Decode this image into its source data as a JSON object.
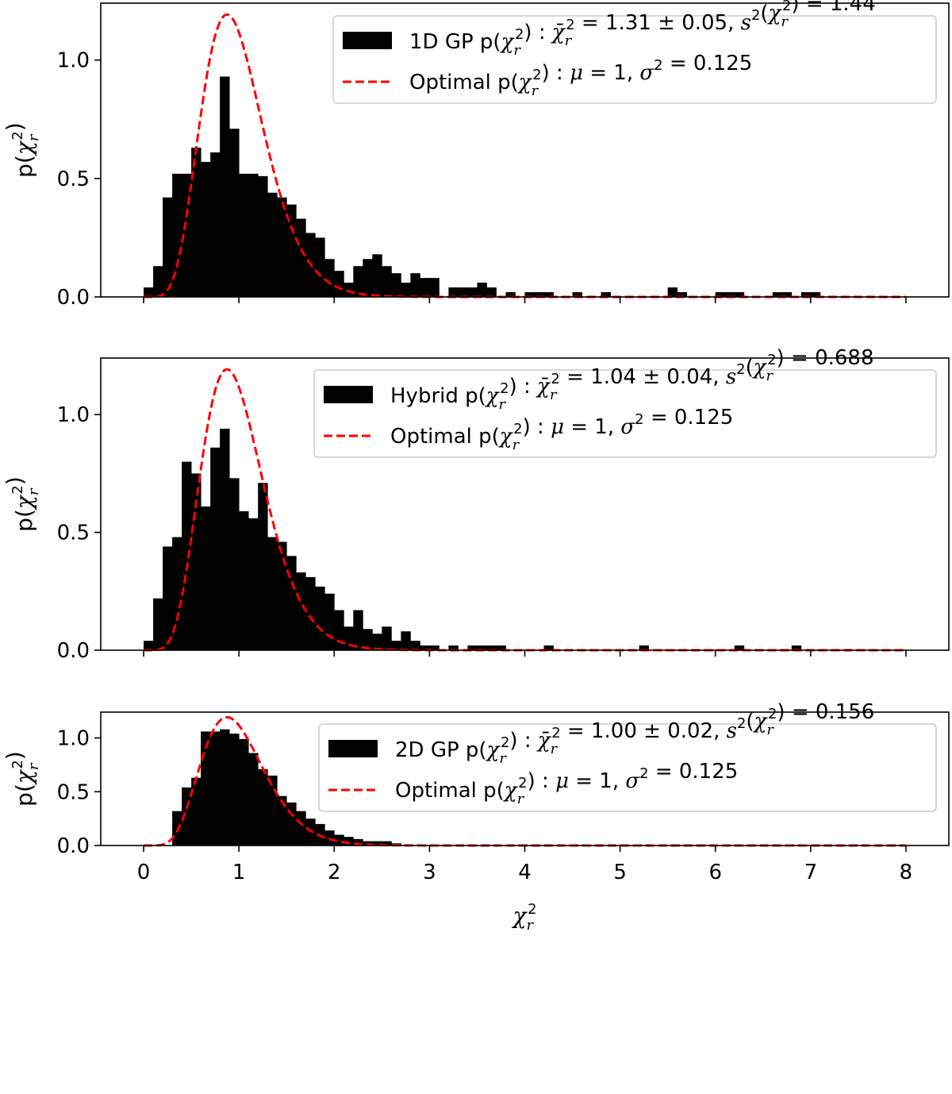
{
  "colors": {
    "bars": "#000000",
    "optimal_curve": "#ff0000",
    "axes": "#000000",
    "legend_border": "#cccccc"
  },
  "chart_data": [
    {
      "type": "bar",
      "ylabel": "p(χ_r^2)",
      "xlim": [
        -0.45,
        8.45
      ],
      "ylim": [
        0,
        1.24
      ],
      "yticks": [
        "0.0",
        "0.5",
        "1.0"
      ],
      "xticks": [
        "0",
        "1",
        "2",
        "3",
        "4",
        "5",
        "6",
        "7",
        "8"
      ],
      "show_xtick_labels": false,
      "bin_width": 0.1,
      "legend_position": "top-right",
      "legend": {
        "hist_label": "1D GP p(χ_r^2) : χ̄_r^2 = 1.31 ± 0.05, s^2(χ_r^2) = 1.44",
        "optimal_label": "Optimal p(χ_r^2) : μ = 1, σ^2 = 0.125"
      },
      "bins": [
        [
          0.0,
          0.04
        ],
        [
          0.1,
          0.13
        ],
        [
          0.2,
          0.42
        ],
        [
          0.3,
          0.52
        ],
        [
          0.4,
          0.52
        ],
        [
          0.5,
          0.63
        ],
        [
          0.6,
          0.57
        ],
        [
          0.7,
          0.61
        ],
        [
          0.8,
          0.93
        ],
        [
          0.9,
          0.71
        ],
        [
          1.0,
          0.52
        ],
        [
          1.1,
          0.52
        ],
        [
          1.2,
          0.51
        ],
        [
          1.3,
          0.44
        ],
        [
          1.4,
          0.42
        ],
        [
          1.5,
          0.39
        ],
        [
          1.6,
          0.33
        ],
        [
          1.7,
          0.27
        ],
        [
          1.8,
          0.25
        ],
        [
          1.9,
          0.16
        ],
        [
          2.0,
          0.11
        ],
        [
          2.1,
          0.06
        ],
        [
          2.2,
          0.13
        ],
        [
          2.3,
          0.16
        ],
        [
          2.4,
          0.18
        ],
        [
          2.5,
          0.13
        ],
        [
          2.6,
          0.1
        ],
        [
          2.7,
          0.06
        ],
        [
          2.8,
          0.1
        ],
        [
          2.9,
          0.08
        ],
        [
          3.0,
          0.08
        ],
        [
          3.2,
          0.04
        ],
        [
          3.3,
          0.04
        ],
        [
          3.4,
          0.04
        ],
        [
          3.5,
          0.06
        ],
        [
          3.6,
          0.04
        ],
        [
          3.8,
          0.02
        ],
        [
          4.0,
          0.02
        ],
        [
          4.1,
          0.02
        ],
        [
          4.2,
          0.02
        ],
        [
          4.5,
          0.02
        ],
        [
          4.8,
          0.02
        ],
        [
          5.5,
          0.04
        ],
        [
          5.6,
          0.02
        ],
        [
          6.0,
          0.02
        ],
        [
          6.1,
          0.02
        ],
        [
          6.2,
          0.02
        ],
        [
          6.6,
          0.02
        ],
        [
          6.7,
          0.02
        ],
        [
          6.9,
          0.02
        ],
        [
          7.0,
          0.02
        ]
      ]
    },
    {
      "type": "bar",
      "ylabel": "p(χ_r^2)",
      "xlim": [
        -0.45,
        8.45
      ],
      "ylim": [
        0,
        1.24
      ],
      "yticks": [
        "0.0",
        "0.5",
        "1.0"
      ],
      "xticks": [
        "0",
        "1",
        "2",
        "3",
        "4",
        "5",
        "6",
        "7",
        "8"
      ],
      "show_xtick_labels": false,
      "bin_width": 0.1,
      "legend_position": "top-right",
      "legend": {
        "hist_label": "Hybrid p(χ_r^2) : χ̄_r^2 = 1.04 ± 0.04, s^2(χ_r^2) = 0.688",
        "optimal_label": "Optimal p(χ_r^2) : μ = 1, σ^2 = 0.125"
      },
      "bins": [
        [
          0.0,
          0.04
        ],
        [
          0.1,
          0.22
        ],
        [
          0.2,
          0.44
        ],
        [
          0.3,
          0.48
        ],
        [
          0.4,
          0.8
        ],
        [
          0.5,
          0.75
        ],
        [
          0.6,
          0.61
        ],
        [
          0.7,
          0.86
        ],
        [
          0.8,
          0.94
        ],
        [
          0.9,
          0.73
        ],
        [
          1.0,
          0.59
        ],
        [
          1.1,
          0.56
        ],
        [
          1.2,
          0.71
        ],
        [
          1.3,
          0.48
        ],
        [
          1.4,
          0.46
        ],
        [
          1.5,
          0.4
        ],
        [
          1.6,
          0.33
        ],
        [
          1.7,
          0.31
        ],
        [
          1.8,
          0.27
        ],
        [
          1.9,
          0.24
        ],
        [
          2.0,
          0.17
        ],
        [
          2.1,
          0.1
        ],
        [
          2.2,
          0.17
        ],
        [
          2.3,
          0.09
        ],
        [
          2.4,
          0.07
        ],
        [
          2.5,
          0.1
        ],
        [
          2.6,
          0.04
        ],
        [
          2.7,
          0.08
        ],
        [
          2.8,
          0.04
        ],
        [
          2.9,
          0.02
        ],
        [
          3.0,
          0.02
        ],
        [
          3.2,
          0.02
        ],
        [
          3.4,
          0.02
        ],
        [
          3.5,
          0.02
        ],
        [
          3.6,
          0.02
        ],
        [
          3.7,
          0.02
        ],
        [
          4.2,
          0.02
        ],
        [
          5.2,
          0.02
        ],
        [
          6.2,
          0.02
        ],
        [
          6.8,
          0.02
        ]
      ]
    },
    {
      "type": "bar",
      "ylabel": "p(χ_r^2)",
      "xlabel": "χ_r^2",
      "xlim": [
        -0.45,
        8.45
      ],
      "ylim": [
        0,
        1.24
      ],
      "yticks": [
        "0.0",
        "0.5",
        "1.0"
      ],
      "xticks": [
        "0",
        "1",
        "2",
        "3",
        "4",
        "5",
        "6",
        "7",
        "8"
      ],
      "show_xtick_labels": true,
      "bin_width": 0.1,
      "legend_position": "top-right",
      "legend": {
        "hist_label": "2D GP p(χ_r^2) : χ̄_r^2 = 1.00 ± 0.02, s^2(χ_r^2) = 0.156",
        "optimal_label": "Optimal p(χ_r^2) : μ = 1, σ^2 = 0.125"
      },
      "bins": [
        [
          0.3,
          0.32
        ],
        [
          0.4,
          0.54
        ],
        [
          0.5,
          0.63
        ],
        [
          0.6,
          1.06
        ],
        [
          0.7,
          1.06
        ],
        [
          0.8,
          1.08
        ],
        [
          0.9,
          1.04
        ],
        [
          1.0,
          0.99
        ],
        [
          1.1,
          0.86
        ],
        [
          1.2,
          0.71
        ],
        [
          1.3,
          0.65
        ],
        [
          1.4,
          0.46
        ],
        [
          1.5,
          0.4
        ],
        [
          1.6,
          0.32
        ],
        [
          1.7,
          0.25
        ],
        [
          1.8,
          0.2
        ],
        [
          1.9,
          0.14
        ],
        [
          2.0,
          0.1
        ],
        [
          2.1,
          0.08
        ],
        [
          2.2,
          0.06
        ],
        [
          2.3,
          0.04
        ],
        [
          2.4,
          0.04
        ],
        [
          2.5,
          0.04
        ],
        [
          2.6,
          0.02
        ]
      ]
    }
  ]
}
